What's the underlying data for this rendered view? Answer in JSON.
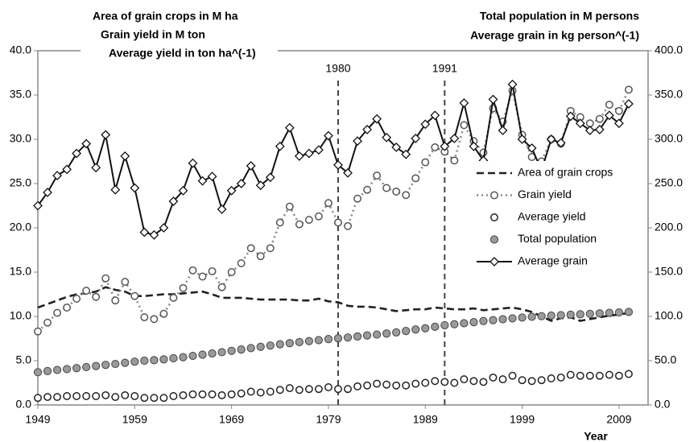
{
  "chart_data": {
    "type": "line",
    "left_axis_label_lines": [
      "Area of grain crops in M ha",
      "Grain yield in M ton",
      "Average yield in ton ha^(-1)"
    ],
    "right_axis_label_lines": [
      "Total population in M persons",
      "Average grain in kg person^(-1)"
    ],
    "x_label": "Year",
    "x": [
      1949,
      1950,
      1951,
      1952,
      1953,
      1954,
      1955,
      1956,
      1957,
      1958,
      1959,
      1960,
      1961,
      1962,
      1963,
      1964,
      1965,
      1966,
      1967,
      1968,
      1969,
      1970,
      1971,
      1972,
      1973,
      1974,
      1975,
      1976,
      1977,
      1978,
      1979,
      1980,
      1981,
      1982,
      1983,
      1984,
      1985,
      1986,
      1987,
      1988,
      1989,
      1990,
      1991,
      1992,
      1993,
      1994,
      1995,
      1996,
      1997,
      1998,
      1999,
      2000,
      2001,
      2002,
      2003,
      2004,
      2005,
      2006,
      2007,
      2008,
      2009,
      2010
    ],
    "xlim": [
      1949,
      2012
    ],
    "xticks": [
      1949,
      1959,
      1969,
      1979,
      1989,
      1999,
      2009
    ],
    "vlines": [
      1980,
      1991
    ],
    "ylim": [
      0,
      40
    ],
    "yticks": [
      {
        "value": 0,
        "label": "0.0"
      },
      {
        "value": 5,
        "label": "5.0"
      },
      {
        "value": 10,
        "label": "10.0"
      },
      {
        "value": 15,
        "label": "15.0"
      },
      {
        "value": 20,
        "label": "20.0"
      },
      {
        "value": 25,
        "label": "25.0"
      },
      {
        "value": 30,
        "label": "30.0"
      },
      {
        "value": 35,
        "label": "35.0"
      },
      {
        "value": 40,
        "label": "40.0"
      }
    ],
    "y2lim": [
      0,
      400
    ],
    "y2ticks": [
      {
        "value": 0,
        "label": "0.0"
      },
      {
        "value": 50,
        "label": "50.0"
      },
      {
        "value": 100,
        "label": "100.0"
      },
      {
        "value": 150,
        "label": "150.0"
      },
      {
        "value": 200,
        "label": "200.0"
      },
      {
        "value": 250,
        "label": "250.0"
      },
      {
        "value": 300,
        "label": "300.0"
      },
      {
        "value": 350,
        "label": "350.0"
      },
      {
        "value": 400,
        "label": "400.0"
      }
    ],
    "series": [
      {
        "name": "Area of grain crops",
        "color": "#222222",
        "line": "dashed",
        "marker": "none",
        "axis": "y",
        "values": [
          11.0,
          11.4,
          11.8,
          12.2,
          12.5,
          12.6,
          12.8,
          13.3,
          13.0,
          12.8,
          12.3,
          12.3,
          12.4,
          12.5,
          12.5,
          12.6,
          12.7,
          12.8,
          12.5,
          12.1,
          12.1,
          12.1,
          12.0,
          11.9,
          11.9,
          11.9,
          11.9,
          11.8,
          11.8,
          12.0,
          11.7,
          11.6,
          11.2,
          11.1,
          11.1,
          11.0,
          10.8,
          10.6,
          10.7,
          10.8,
          10.8,
          11.0,
          10.9,
          10.8,
          10.8,
          10.9,
          10.7,
          10.8,
          10.9,
          11.0,
          10.8,
          10.5,
          10.0,
          9.5,
          9.8,
          9.9,
          9.5,
          9.7,
          9.9,
          10.1,
          10.2,
          10.4
        ]
      },
      {
        "name": "Grain yield",
        "color": "#888888",
        "line": "dotted",
        "marker": "circle-open",
        "axis": "y",
        "values": [
          8.3,
          9.3,
          10.4,
          11.0,
          12.0,
          12.9,
          12.2,
          14.3,
          11.8,
          13.9,
          12.3,
          9.9,
          9.7,
          10.3,
          12.1,
          13.2,
          15.2,
          14.5,
          15.1,
          13.3,
          15.0,
          16.0,
          17.7,
          16.8,
          17.7,
          20.6,
          22.4,
          20.4,
          20.9,
          21.3,
          22.8,
          20.6,
          20.2,
          23.3,
          24.3,
          25.9,
          24.5,
          24.1,
          23.7,
          25.6,
          27.4,
          29.1,
          28.6,
          27.6,
          31.6,
          29.8,
          28.5,
          33.5,
          32.0,
          35.5,
          30.5,
          28.0,
          27.5,
          30.0,
          29.5,
          33.2,
          32.5,
          31.8,
          32.3,
          33.9,
          33.2,
          35.6
        ]
      },
      {
        "name": "Average yield",
        "color": "#222222",
        "line": "none",
        "marker": "circle-open",
        "axis": "y",
        "values": [
          0.8,
          0.9,
          0.9,
          1.0,
          1.0,
          1.0,
          1.0,
          1.1,
          0.9,
          1.1,
          1.0,
          0.8,
          0.8,
          0.8,
          1.0,
          1.1,
          1.2,
          1.2,
          1.2,
          1.1,
          1.2,
          1.3,
          1.5,
          1.4,
          1.5,
          1.7,
          1.9,
          1.7,
          1.8,
          1.8,
          2.0,
          1.8,
          1.8,
          2.1,
          2.2,
          2.4,
          2.3,
          2.2,
          2.2,
          2.4,
          2.5,
          2.7,
          2.6,
          2.5,
          2.9,
          2.7,
          2.6,
          3.1,
          2.9,
          3.3,
          2.8,
          2.7,
          2.8,
          3.0,
          3.1,
          3.4,
          3.3,
          3.3,
          3.3,
          3.4,
          3.3,
          3.5
        ]
      },
      {
        "name": "Total population",
        "color": "#9a9a9a",
        "line": "none",
        "marker": "circle-filled",
        "axis": "y2",
        "values": [
          37.0,
          38.3,
          39.5,
          40.5,
          41.6,
          42.8,
          44.0,
          45.2,
          46.3,
          47.6,
          48.9,
          50.0,
          50.6,
          51.5,
          52.7,
          54.0,
          55.4,
          56.8,
          58.2,
          59.6,
          61.1,
          62.6,
          64.2,
          65.7,
          67.1,
          68.5,
          69.8,
          71.0,
          72.1,
          73.2,
          74.4,
          75.2,
          76.2,
          77.4,
          78.5,
          79.5,
          80.7,
          81.9,
          83.5,
          85.2,
          86.6,
          88.3,
          90.0,
          91.2,
          92.3,
          93.5,
          94.8,
          95.8,
          96.8,
          97.8,
          98.7,
          99.6,
          100.3,
          100.9,
          101.4,
          101.9,
          102.4,
          102.9,
          103.4,
          104.0,
          104.5,
          105.0
        ]
      },
      {
        "name": "Average grain",
        "color": "#111111",
        "line": "solid",
        "marker": "diamond",
        "axis": "y2",
        "values": [
          225,
          240,
          259,
          266,
          284,
          295,
          268,
          305,
          243,
          281,
          245,
          195,
          192,
          200,
          230,
          242,
          273,
          253,
          258,
          221,
          242,
          250,
          270,
          248,
          257,
          292,
          313,
          281,
          284,
          288,
          304,
          271,
          262,
          298,
          311,
          323,
          302,
          291,
          283,
          301,
          317,
          327,
          292,
          301,
          341,
          292,
          276,
          345,
          310,
          362,
          300,
          290,
          265,
          300,
          296,
          326,
          318,
          310,
          311,
          327,
          318,
          340
        ]
      }
    ]
  }
}
